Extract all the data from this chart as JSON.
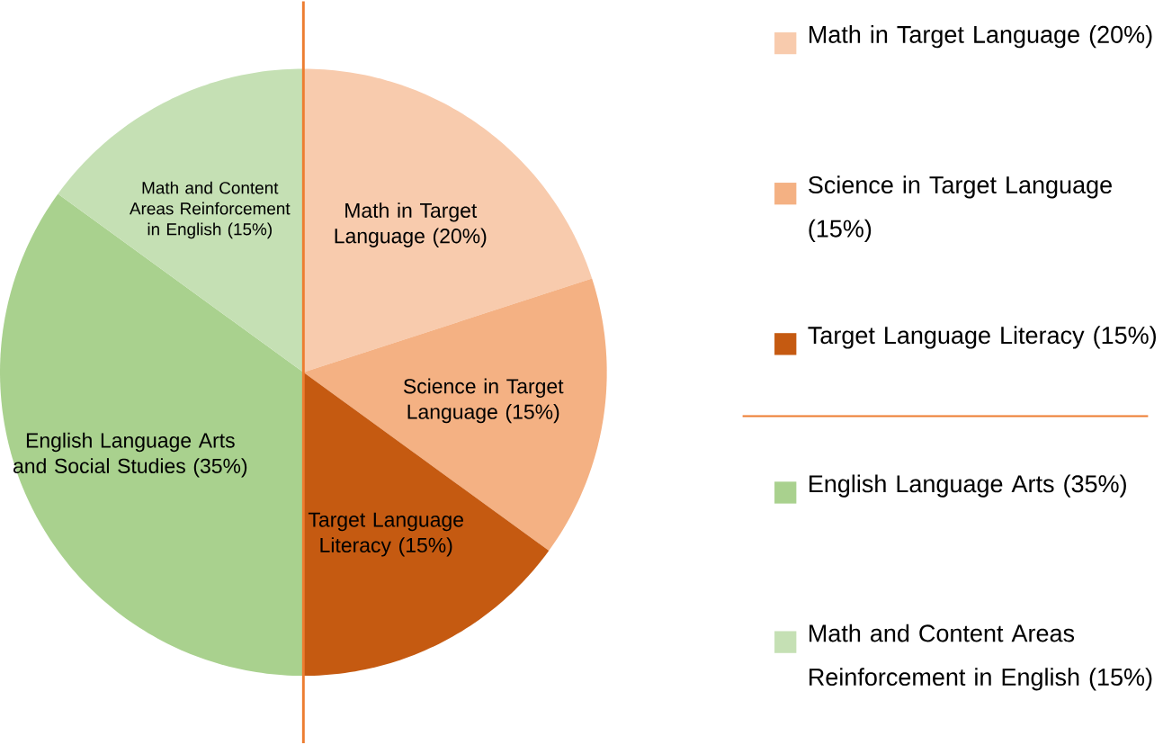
{
  "chart_data": {
    "type": "pie",
    "categories": [
      "Math in Target Language (20%)",
      "Science in Target Language (15%)",
      "Target Language Literacy (15%)",
      "English Language Arts (35%)",
      "Math and Content Areas Reinforcement in English (15%)"
    ],
    "values": [
      20,
      15,
      15,
      35,
      15
    ],
    "colors": [
      "#f8cbad",
      "#f4b183",
      "#c55a11",
      "#a9d18e",
      "#c5e0b4"
    ],
    "value_labels": [
      "Math in Target Language (20%)",
      "Science in Target Language (15%)",
      "Target Language Literacy (15%)",
      "English Language Arts and Social Studies (35%)",
      "Math and Content Areas Reinforcement in English (15%)"
    ],
    "legend": "right"
  }
}
